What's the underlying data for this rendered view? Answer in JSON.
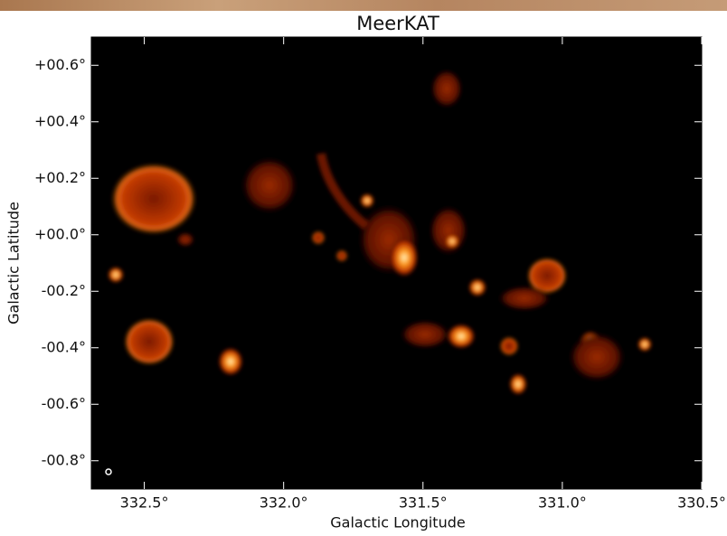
{
  "chart_data": {
    "type": "image",
    "title": "MeerKAT",
    "x_label": "Galactic Longitude",
    "y_label": "Galactic Latitude",
    "xlim": [
      332.69,
      330.5
    ],
    "ylim": [
      -0.9,
      0.7
    ],
    "xticks": [
      {
        "value": 332.5,
        "label": "332.5°"
      },
      {
        "value": 332.0,
        "label": "332.0°"
      },
      {
        "value": 331.5,
        "label": "331.5°"
      },
      {
        "value": 331.0,
        "label": "331.0°"
      },
      {
        "value": 330.5,
        "label": "330.5°"
      }
    ],
    "yticks": [
      {
        "value": 0.6,
        "label": "+00.6°"
      },
      {
        "value": 0.4,
        "label": "+00.4°"
      },
      {
        "value": 0.2,
        "label": "+00.2°"
      },
      {
        "value": 0.0,
        "label": "+00.0°"
      },
      {
        "value": -0.2,
        "label": "-00.2°"
      },
      {
        "value": -0.4,
        "label": "-00.4°"
      },
      {
        "value": -0.6,
        "label": "-00.6°"
      },
      {
        "value": -0.8,
        "label": "-00.8°"
      }
    ]
  }
}
